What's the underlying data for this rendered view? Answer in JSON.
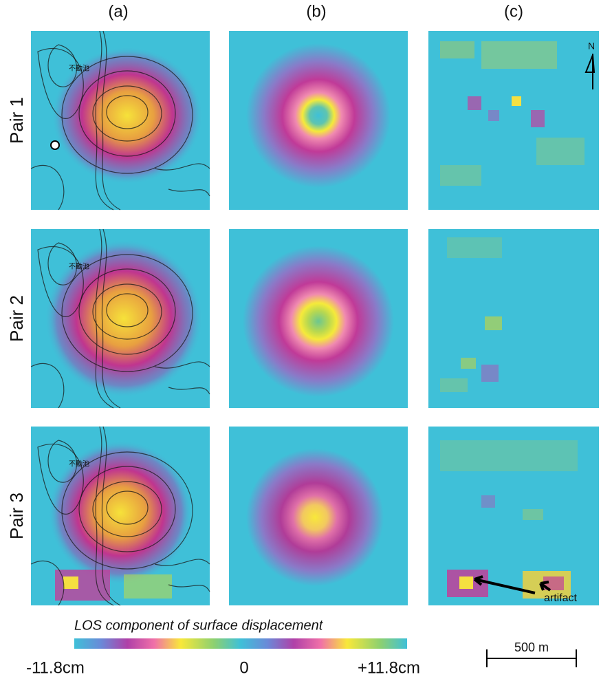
{
  "columns": [
    "(a)",
    "(b)",
    "(c)"
  ],
  "rows": [
    "Pair 1",
    "Pair 2",
    "Pair 3"
  ],
  "map_label": "不動池",
  "north": "N",
  "annotation": "artifact",
  "colorbar": {
    "title": "LOS component of surface displacement",
    "labels": [
      "-11.8cm",
      "0",
      "+11.8cm"
    ]
  },
  "scale_bar": "500 m"
}
